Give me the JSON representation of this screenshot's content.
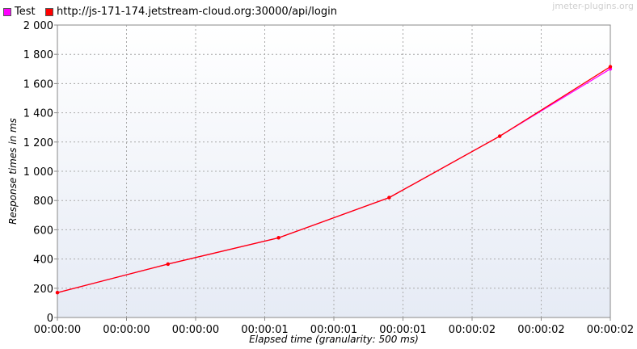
{
  "legend": {
    "items": [
      {
        "label": "Test",
        "color": "#ff00ff"
      },
      {
        "label": "http://js-171-174.jetstream-cloud.org:30000/api/login",
        "color": "#ff0000"
      }
    ]
  },
  "watermark": "jmeter-plugins.org",
  "chart_data": {
    "type": "line",
    "xlabel": "Elapsed time (granularity: 500 ms)",
    "ylabel": "Response times in ms",
    "ylim": [
      0,
      2000
    ],
    "y_ticks": [
      0,
      200,
      400,
      600,
      800,
      1000,
      1200,
      1400,
      1600,
      1800,
      2000
    ],
    "y_tick_labels": [
      "0",
      "200",
      "400",
      "600",
      "800",
      "1 000",
      "1 200",
      "1 400",
      "1 600",
      "1 800",
      "2 000"
    ],
    "x_tick_labels": [
      "00:00:00",
      "00:00:00",
      "00:00:00",
      "00:00:01",
      "00:00:01",
      "00:00:01",
      "00:00:02",
      "00:00:02",
      "00:00:02"
    ],
    "x": [
      0,
      1,
      2,
      3,
      4,
      5
    ],
    "xlim": [
      0,
      5
    ],
    "grid": true,
    "legend_position": "top-left",
    "series": [
      {
        "name": "Test",
        "color": "#ff00ff",
        "values": [
          170,
          365,
          545,
          820,
          1240,
          1700
        ]
      },
      {
        "name": "http://js-171-174.jetstream-cloud.org:30000/api/login",
        "color": "#ff0000",
        "values": [
          170,
          365,
          545,
          820,
          1240,
          1715
        ]
      }
    ]
  }
}
